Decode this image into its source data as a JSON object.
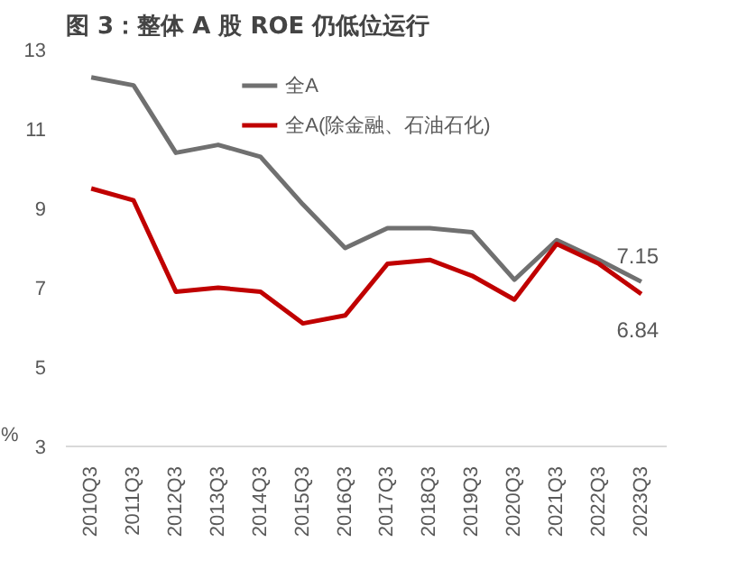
{
  "chart_data": {
    "type": "line",
    "title": "图 3：整体 A 股 ROE 仍低位运行",
    "ylabel": "%",
    "categories": [
      "2010Q3",
      "2011Q3",
      "2012Q3",
      "2013Q3",
      "2014Q3",
      "2015Q3",
      "2016Q3",
      "2017Q3",
      "2018Q3",
      "2019Q3",
      "2020Q3",
      "2021Q3",
      "2022Q3",
      "2023Q3"
    ],
    "series": [
      {
        "name": "全A",
        "color": "#707070",
        "values": [
          12.3,
          12.1,
          10.4,
          10.6,
          10.3,
          9.1,
          8.0,
          8.5,
          8.5,
          8.4,
          7.2,
          8.2,
          7.7,
          7.15
        ],
        "value_labels": [
          null,
          null,
          null,
          null,
          null,
          null,
          null,
          null,
          null,
          null,
          null,
          null,
          null,
          "7.15"
        ]
      },
      {
        "name": "全A(除金融、石油石化)",
        "color": "#c00000",
        "values": [
          9.5,
          9.2,
          6.9,
          7.0,
          6.9,
          6.1,
          6.3,
          7.6,
          7.7,
          7.3,
          6.7,
          8.1,
          7.6,
          6.84
        ],
        "value_labels": [
          null,
          null,
          null,
          null,
          null,
          null,
          null,
          null,
          null,
          null,
          null,
          null,
          null,
          "6.84"
        ]
      }
    ],
    "ylim": [
      3,
      13
    ],
    "yticks": [
      3,
      5,
      7,
      9,
      11,
      13
    ],
    "grid": false,
    "legend": "top"
  }
}
